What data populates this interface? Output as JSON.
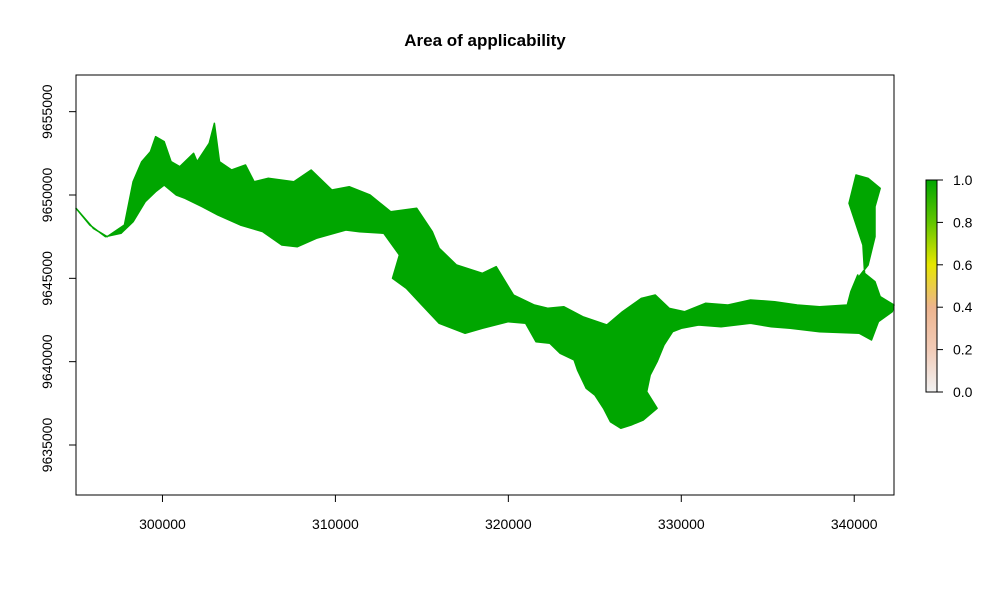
{
  "chart_data": {
    "type": "heatmap",
    "title": "Area of applicability",
    "xlabel": "",
    "ylabel": "",
    "xlim": [
      295000,
      342300
    ],
    "ylim": [
      9632000,
      9657200
    ],
    "x_ticks": [
      300000,
      310000,
      320000,
      330000,
      340000
    ],
    "y_ticks": [
      9635000,
      9640000,
      9645000,
      9650000,
      9655000
    ],
    "x_tick_labels": [
      "300000",
      "310000",
      "320000",
      "330000",
      "340000"
    ],
    "y_tick_labels": [
      "9635000",
      "9640000",
      "9645000",
      "9650000",
      "9655000"
    ],
    "grid": false,
    "fill_value": 1.0,
    "fill_color": "#00A600",
    "legend": {
      "position": "right",
      "range": [
        0.0,
        1.0
      ],
      "ticks": [
        "0.0",
        "0.2",
        "0.4",
        "0.6",
        "0.8",
        "1.0"
      ],
      "colors": [
        "#F2F2F2",
        "#F2CBB7",
        "#EDB48E",
        "#E6E600",
        "#63C600",
        "#00A600"
      ]
    },
    "region_outline": [
      [
        295000,
        9649200
      ],
      [
        296000,
        9648000
      ],
      [
        296800,
        9647500
      ],
      [
        297800,
        9648200
      ],
      [
        298300,
        9650800
      ],
      [
        298800,
        9652000
      ],
      [
        299300,
        9652600
      ],
      [
        299600,
        9653500
      ],
      [
        300100,
        9653200
      ],
      [
        300500,
        9652000
      ],
      [
        301000,
        9651700
      ],
      [
        301800,
        9652500
      ],
      [
        302000,
        9652000
      ],
      [
        302700,
        9653100
      ],
      [
        303000,
        9654300
      ],
      [
        303300,
        9652000
      ],
      [
        304000,
        9651500
      ],
      [
        304800,
        9651800
      ],
      [
        305300,
        9650800
      ],
      [
        306100,
        9651000
      ],
      [
        307600,
        9650800
      ],
      [
        308600,
        9651500
      ],
      [
        309800,
        9650300
      ],
      [
        310800,
        9650500
      ],
      [
        312000,
        9650000
      ],
      [
        313200,
        9649000
      ],
      [
        314700,
        9649200
      ],
      [
        315600,
        9647800
      ],
      [
        316000,
        9646800
      ],
      [
        317000,
        9645800
      ],
      [
        318500,
        9645300
      ],
      [
        319300,
        9645700
      ],
      [
        320300,
        9644000
      ],
      [
        321500,
        9643400
      ],
      [
        322300,
        9643200
      ],
      [
        323200,
        9643300
      ],
      [
        324300,
        9642700
      ],
      [
        325700,
        9642200
      ],
      [
        326600,
        9643000
      ],
      [
        327700,
        9643800
      ],
      [
        328500,
        9644000
      ],
      [
        329300,
        9643200
      ],
      [
        330200,
        9643000
      ],
      [
        331400,
        9643500
      ],
      [
        332700,
        9643400
      ],
      [
        334000,
        9643700
      ],
      [
        335400,
        9643600
      ],
      [
        336700,
        9643400
      ],
      [
        338000,
        9643300
      ],
      [
        339600,
        9643400
      ],
      [
        339800,
        9644200
      ],
      [
        340200,
        9645200
      ],
      [
        340500,
        9644200
      ],
      [
        340200,
        9645000
      ],
      [
        340800,
        9645800
      ],
      [
        341200,
        9647500
      ],
      [
        341200,
        9649300
      ],
      [
        341500,
        9650400
      ],
      [
        340800,
        9651000
      ],
      [
        340100,
        9651200
      ],
      [
        339700,
        9649500
      ],
      [
        340500,
        9647000
      ],
      [
        340600,
        9645300
      ],
      [
        341200,
        9644800
      ],
      [
        341500,
        9643900
      ],
      [
        342300,
        9643400
      ],
      [
        342200,
        9643000
      ],
      [
        341400,
        9642400
      ],
      [
        341000,
        9641300
      ],
      [
        340300,
        9641700
      ],
      [
        338000,
        9641800
      ],
      [
        336300,
        9642000
      ],
      [
        335200,
        9642100
      ],
      [
        334000,
        9642300
      ],
      [
        332300,
        9642100
      ],
      [
        331000,
        9642200
      ],
      [
        330000,
        9642000
      ],
      [
        329500,
        9641800
      ],
      [
        329000,
        9641000
      ],
      [
        328600,
        9640000
      ],
      [
        328200,
        9639200
      ],
      [
        328000,
        9638200
      ],
      [
        328600,
        9637200
      ],
      [
        327800,
        9636500
      ],
      [
        327100,
        9636200
      ],
      [
        326500,
        9636000
      ],
      [
        325900,
        9636400
      ],
      [
        325500,
        9637200
      ],
      [
        325000,
        9638000
      ],
      [
        324500,
        9638400
      ],
      [
        324000,
        9639500
      ],
      [
        323800,
        9640100
      ],
      [
        323000,
        9640500
      ],
      [
        322400,
        9641100
      ],
      [
        321600,
        9641200
      ],
      [
        321000,
        9642300
      ],
      [
        320000,
        9642400
      ],
      [
        318500,
        9642000
      ],
      [
        317500,
        9641700
      ],
      [
        316000,
        9642300
      ],
      [
        315000,
        9643400
      ],
      [
        314100,
        9644400
      ],
      [
        313300,
        9645000
      ],
      [
        313700,
        9646400
      ],
      [
        312800,
        9647700
      ],
      [
        311400,
        9647800
      ],
      [
        310600,
        9647900
      ],
      [
        308900,
        9647400
      ],
      [
        307800,
        9646900
      ],
      [
        306900,
        9647000
      ],
      [
        305800,
        9647800
      ],
      [
        304500,
        9648200
      ],
      [
        303200,
        9648800
      ],
      [
        302300,
        9649300
      ],
      [
        301300,
        9649800
      ],
      [
        300800,
        9650000
      ],
      [
        300100,
        9650600
      ],
      [
        299600,
        9650200
      ],
      [
        299000,
        9649600
      ],
      [
        298300,
        9648400
      ],
      [
        297600,
        9647700
      ],
      [
        296700,
        9647500
      ],
      [
        295800,
        9648200
      ]
    ]
  }
}
